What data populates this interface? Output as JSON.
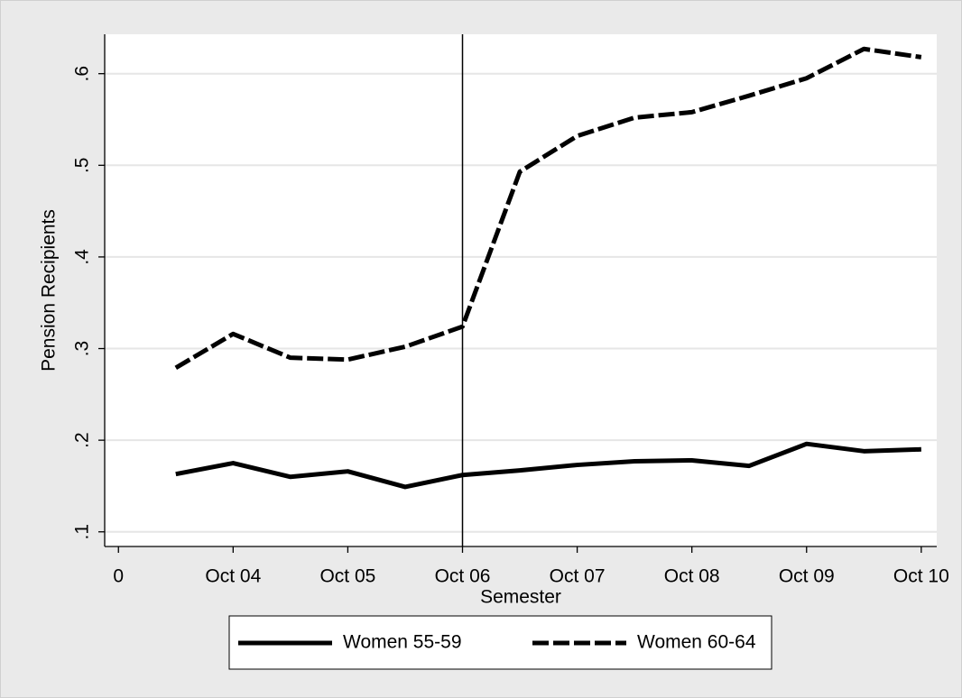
{
  "chart_data": {
    "type": "line",
    "x_label": "Semester",
    "y_label": "Pension Recipients",
    "x": [
      1,
      2,
      3,
      4,
      5,
      6,
      7,
      8,
      9,
      10,
      11,
      12,
      13,
      14
    ],
    "series": [
      {
        "name": "Women 55-59",
        "color": "#000000",
        "dash": "solid",
        "values": [
          0.163,
          0.175,
          0.16,
          0.166,
          0.149,
          0.162,
          0.167,
          0.173,
          0.177,
          0.178,
          0.172,
          0.196,
          0.188,
          0.19
        ]
      },
      {
        "name": "Women 60-64",
        "color": "#000000",
        "dash": "dashed",
        "values": [
          0.279,
          0.316,
          0.29,
          0.288,
          0.302,
          0.324,
          0.493,
          0.532,
          0.552,
          0.558,
          0.576,
          0.595,
          0.627,
          0.618
        ]
      }
    ],
    "xlim": [
      -0.24,
      14.27
    ],
    "xticks": [
      0,
      {
        "value": 2,
        "label": "Oct 04"
      },
      {
        "value": 4,
        "label": "Oct 05"
      },
      {
        "value": 6,
        "label": "Oct 06"
      },
      {
        "value": 8,
        "label": "Oct 07"
      },
      {
        "value": 10,
        "label": "Oct 08"
      },
      {
        "value": 12,
        "label": "Oct 09"
      },
      {
        "value": 14,
        "label": "Oct 10"
      }
    ],
    "ylim": [
      0.084,
      0.643
    ],
    "yticks": [
      {
        "value": 0.1,
        "label": ".1"
      },
      {
        "value": 0.2,
        "label": ".2"
      },
      {
        "value": 0.3,
        "label": ".3"
      },
      {
        "value": 0.4,
        "label": ".4"
      },
      {
        "value": 0.5,
        "label": ".5"
      },
      {
        "value": 0.6,
        "label": ".6"
      }
    ],
    "reference_line_x": 6,
    "grid": true,
    "legend": "bottom"
  }
}
